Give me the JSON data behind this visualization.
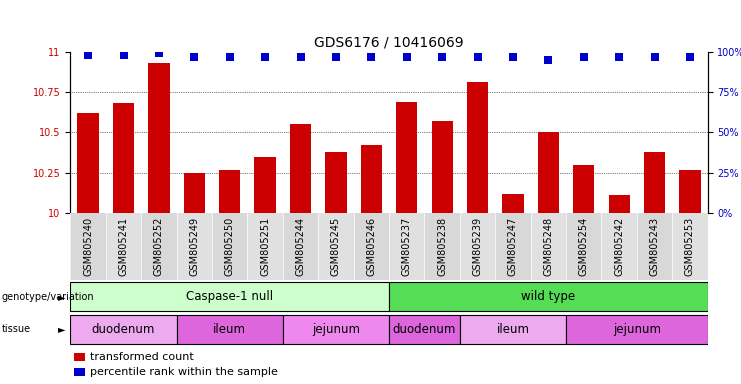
{
  "title": "GDS6176 / 10416069",
  "samples": [
    "GSM805240",
    "GSM805241",
    "GSM805252",
    "GSM805249",
    "GSM805250",
    "GSM805251",
    "GSM805244",
    "GSM805245",
    "GSM805246",
    "GSM805237",
    "GSM805238",
    "GSM805239",
    "GSM805247",
    "GSM805248",
    "GSM805254",
    "GSM805242",
    "GSM805243",
    "GSM805253"
  ],
  "bar_values": [
    10.62,
    10.68,
    10.93,
    10.25,
    10.27,
    10.35,
    10.55,
    10.38,
    10.42,
    10.69,
    10.57,
    10.81,
    10.12,
    10.5,
    10.3,
    10.11,
    10.38,
    10.27
  ],
  "percentile_values": [
    98,
    98,
    99,
    97,
    97,
    97,
    97,
    97,
    97,
    97,
    97,
    97,
    97,
    95,
    97,
    97,
    97,
    97
  ],
  "bar_color": "#cc0000",
  "dot_color": "#0000cc",
  "ylim_left": [
    10,
    11
  ],
  "ylim_right": [
    0,
    100
  ],
  "yticks_left": [
    10,
    10.25,
    10.5,
    10.75,
    11
  ],
  "yticks_right": [
    0,
    25,
    50,
    75,
    100
  ],
  "grid_lines": [
    10.25,
    10.5,
    10.75
  ],
  "background_color": "#ffffff",
  "plot_bg": "#ffffff",
  "genotype_groups": [
    {
      "label": "Caspase-1 null",
      "start": 0,
      "end": 9,
      "color": "#ccffcc"
    },
    {
      "label": "wild type",
      "start": 9,
      "end": 18,
      "color": "#55dd55"
    }
  ],
  "tissue_groups": [
    {
      "label": "duodenum",
      "start": 0,
      "end": 3,
      "color": "#eeaaee"
    },
    {
      "label": "ileum",
      "start": 3,
      "end": 6,
      "color": "#dd66dd"
    },
    {
      "label": "jejunum",
      "start": 6,
      "end": 9,
      "color": "#ee88ee"
    },
    {
      "label": "duodenum",
      "start": 9,
      "end": 11,
      "color": "#dd66dd"
    },
    {
      "label": "ileum",
      "start": 11,
      "end": 14,
      "color": "#eeaaee"
    },
    {
      "label": "jejunum",
      "start": 14,
      "end": 18,
      "color": "#dd66dd"
    }
  ],
  "legend_items": [
    {
      "label": "transformed count",
      "color": "#cc0000"
    },
    {
      "label": "percentile rank within the sample",
      "color": "#0000cc"
    }
  ],
  "bar_width": 0.6,
  "dot_size": 40,
  "dot_marker": "s",
  "title_fontsize": 10,
  "tick_fontsize": 7,
  "label_fontsize": 8.5,
  "legend_fontsize": 8
}
